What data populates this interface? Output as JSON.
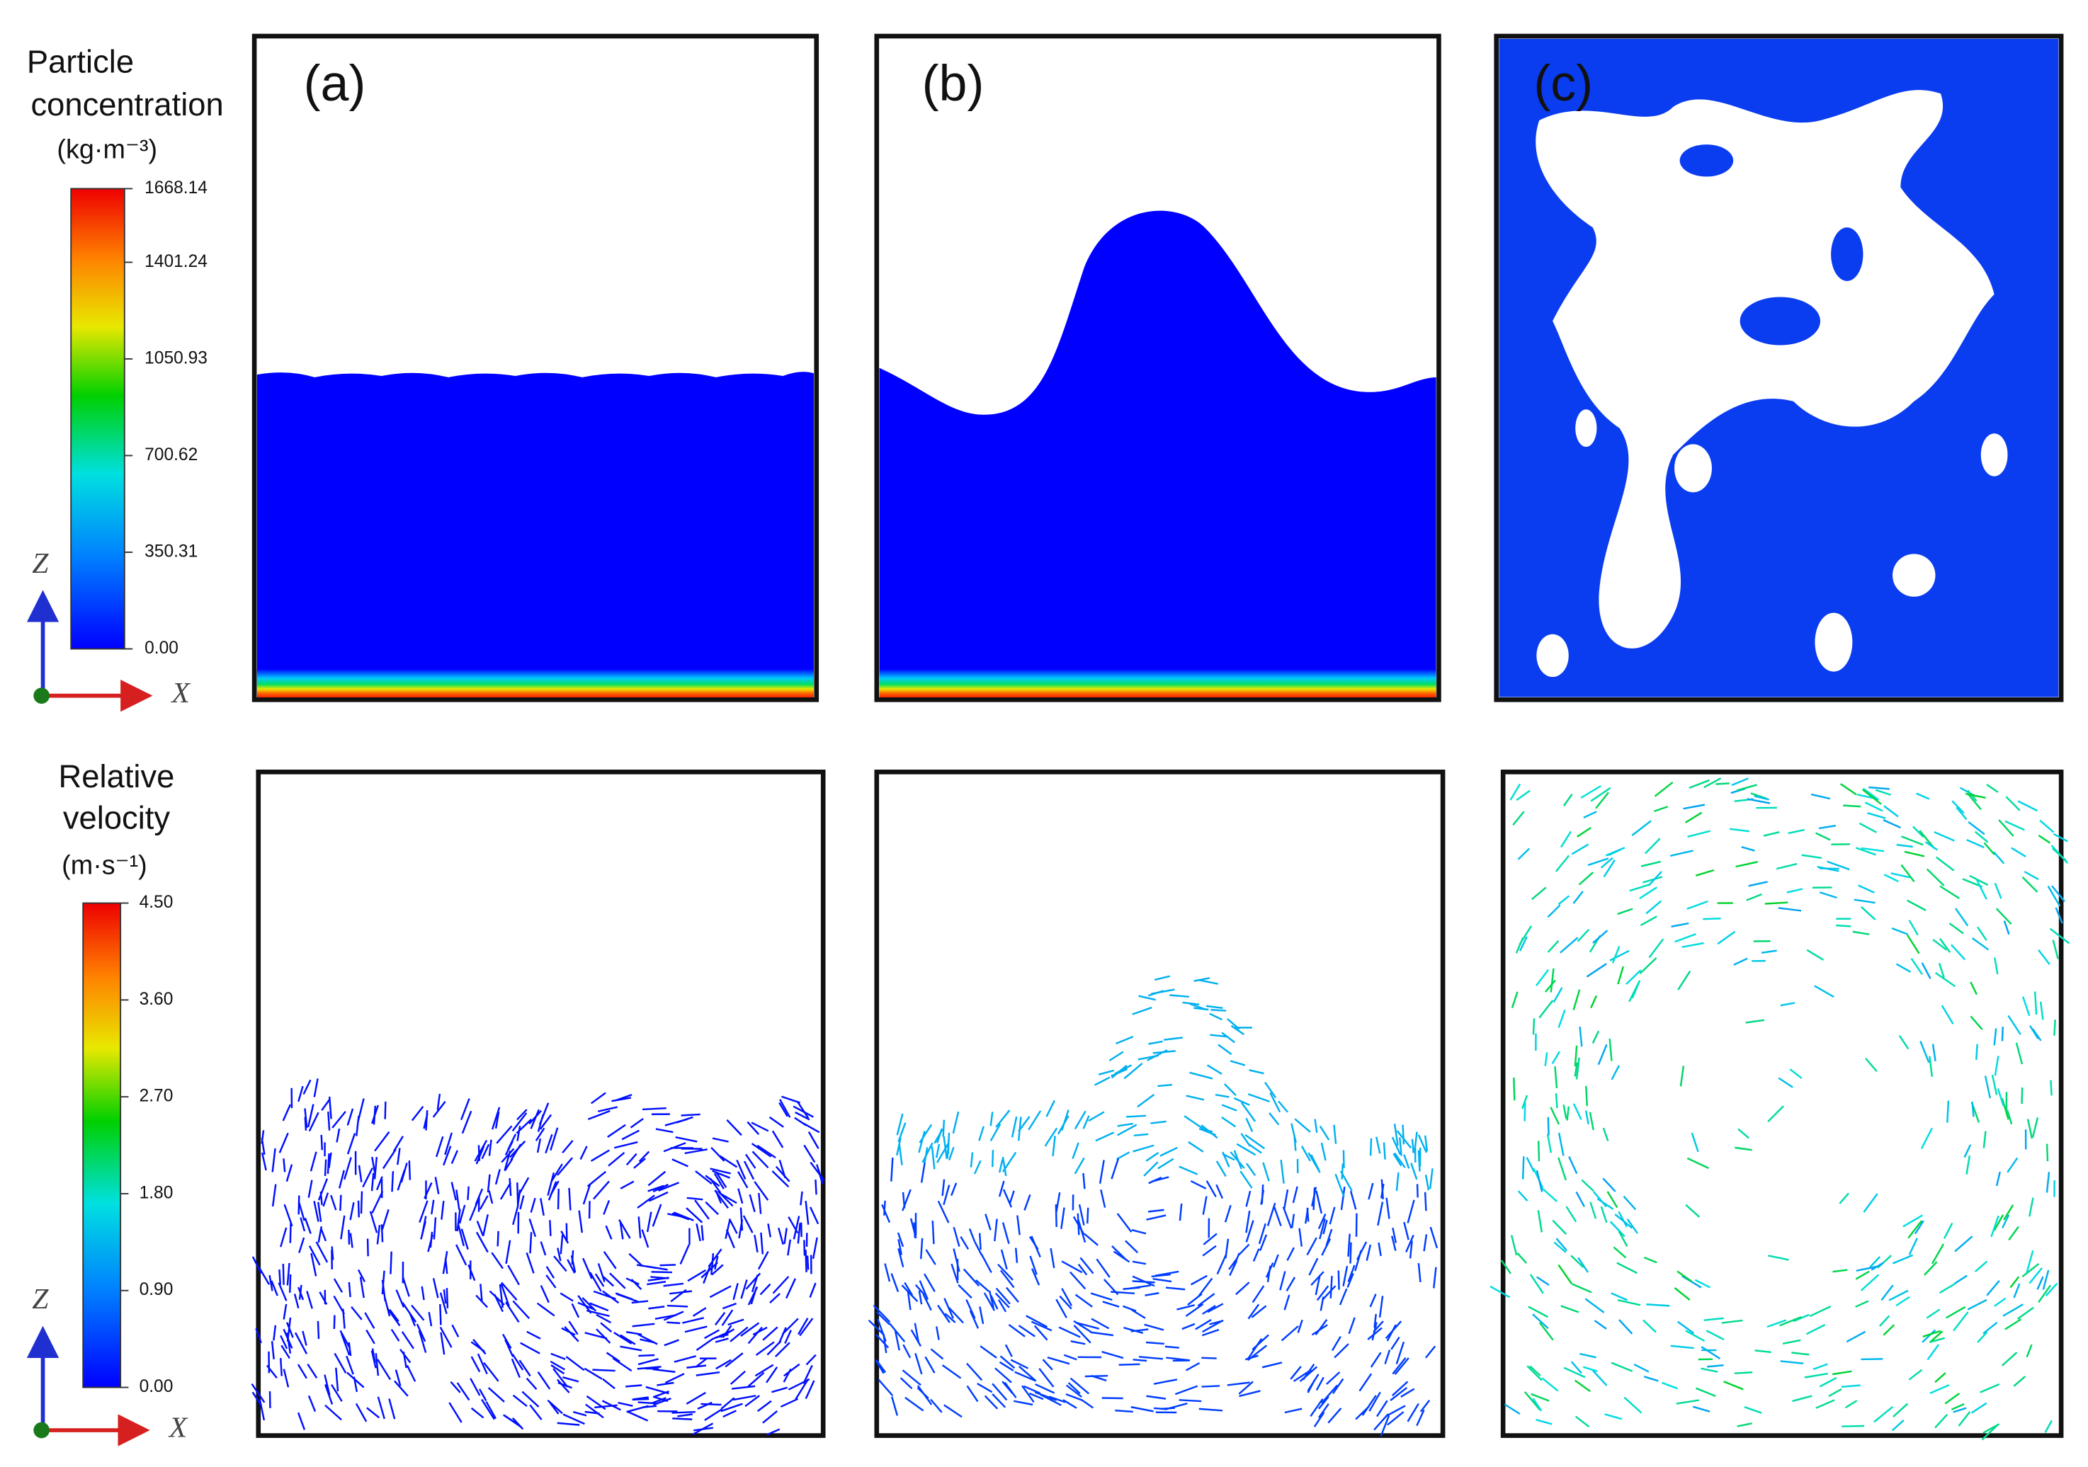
{
  "panels": [
    {
      "label": "(a)"
    },
    {
      "label": "(b)"
    },
    {
      "label": "(c)"
    }
  ],
  "legends": [
    {
      "title": [
        "Particle",
        "concentration"
      ],
      "unit": "(kg·m⁻³)",
      "lim": [
        0,
        1668.14
      ],
      "ticks": [
        {
          "value": 0,
          "label": "0.00"
        },
        350.31,
        700.62,
        1050.93,
        1401.24,
        1668.14
      ]
    },
    {
      "title": [
        "Relative",
        "velocity"
      ],
      "unit": "(m·s⁻¹)",
      "lim": [
        0,
        4.5
      ],
      "ticks": [
        {
          "value": 0,
          "label": "0.00"
        },
        {
          "value": 0.9,
          "label": "0.90"
        },
        {
          "value": 1.8,
          "label": "1.80"
        },
        {
          "value": 2.7,
          "label": "2.70"
        },
        {
          "value": 3.6,
          "label": "3.60"
        },
        {
          "value": 4.5,
          "label": "4.50"
        }
      ]
    }
  ],
  "axes": [
    {
      "z": "Z",
      "x": "X"
    },
    {
      "z": "Z",
      "x": "X"
    }
  ]
}
